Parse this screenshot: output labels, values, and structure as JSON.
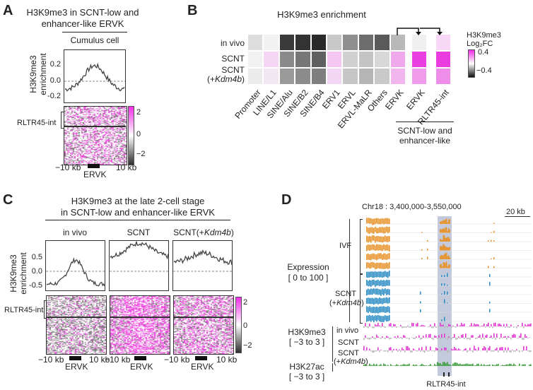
{
  "panelA": {
    "label": "A",
    "title_line1": "H3K9me3 in SCNT-low and",
    "title_line2": "enhancer-like ERVK",
    "subtitle": "Cumulus cell",
    "ylabel_line1": "H3K9me3",
    "ylabel_line2": "enrichment",
    "yticks": [
      "0.2",
      "0.0",
      "-0.2"
    ],
    "row_label": "RLTR45-int",
    "colorbar_ticks": [
      "2",
      "0",
      "−2"
    ],
    "x_left": "−10 kb",
    "x_right": "10 kb",
    "x_feature": "ERVK"
  },
  "panelB": {
    "label": "B",
    "title": "H3K9me3 enrichment",
    "rows": [
      "in vivo",
      "SCNT",
      "SCNT",
      "(+Kdm4b)"
    ],
    "row3_prefix": "(+",
    "row3_gene": "Kdm4b",
    "row3_suffix": ")",
    "columns": [
      "Promoter",
      "LINE/L1",
      "SINE/Alu",
      "SINE/B2",
      "SINE/B4",
      "ERV1",
      "ERVL",
      "ERVL-MaLR",
      "Others",
      "ERVK"
    ],
    "extra_columns": [
      "ERVK",
      "RLTR45-int"
    ],
    "group_label_line1": "SCNT-low and",
    "group_label_line2": "enhancer-like",
    "legend_title_line1": "H3K9me3",
    "legend_title_line2": "Log₂FC",
    "legend_ticks": [
      "0.4",
      "−0.4"
    ],
    "cells": [
      [
        "#dedede",
        "#f2f2f2",
        "#3a3a3a",
        "#333333",
        "#2a2a2a",
        "#c8c8c8",
        "#8f8f8f",
        "#6d6d6d",
        "#5a5a5a",
        "#b9b9b9"
      ],
      [
        "#f1f1f1",
        "#f5d6f3",
        "#8a8a8a",
        "#777777",
        "#5f5f5f",
        "#f4c6f1",
        "#d0d0d0",
        "#c4c4c4",
        "#d8d8d8",
        "#f0aaec"
      ],
      [
        "#ececec",
        "#f2e8f2",
        "#9a9a9a",
        "#8c8c8c",
        "#7f7f7f",
        "#f3d6f1",
        "#c6c6c6",
        "#b5b5b5",
        "#c9c9c9",
        "#f1b6ee"
      ]
    ],
    "extra_cells": [
      [
        "#f0f0f0",
        "#f7d8f5"
      ],
      [
        "#ea3fe0",
        "#e93de0"
      ],
      [
        "#ef9be9",
        "#ee8ee8"
      ]
    ]
  },
  "panelC": {
    "label": "C",
    "title_line1": "H3K9me3 at the late 2-cell stage",
    "title_line2": "in SCNT-low and enhancer-like ERVK",
    "col1": "in vivo",
    "col2": "SCNT",
    "col3_prefix": "SCNT(+",
    "col3_gene": "Kdm4b",
    "col3_suffix": ")",
    "ylabel_line1": "H3K9me3",
    "ylabel_line2": "enrichment",
    "yticks": [
      "0.5",
      "0.0",
      "-0.5"
    ],
    "row_label": "RLTR45-int",
    "colorbar_ticks": [
      "2",
      "0",
      "−2"
    ],
    "x_left": "−10 kb",
    "x_right": "10 kb",
    "x_feature": "ERVK"
  },
  "panelD": {
    "label": "D",
    "locus": "Chr18 : 3,400,000-3,550,000",
    "scale": "20 kb",
    "expression_line1": "Expression",
    "expression_line2": "[ 0 to 100 ]",
    "ivf": "IVF",
    "scnt_line1": "SCNT",
    "scnt_prefix": "(+",
    "scnt_gene": "Kdm4b",
    "scnt_suffix": ")",
    "h3k9_line1": "H3K9me3",
    "h3k9_line2": "[ −3 to 3 ]",
    "h3k27_line1": "H3K27ac",
    "h3k27_line2": "[ −3 to 3 ]",
    "track_invivo": "in vivo",
    "track_scnt": "SCNT",
    "track_scnt_kdm": "SCNT",
    "bottom_label": "RLTR45-int",
    "colors": {
      "ivf": "#e8922a",
      "scnt": "#2b8cc4",
      "h3k9_pos": "#e03ad0",
      "h3k9_neg": "#b8b8b8",
      "h3k27": "#3a9a3a",
      "highlight": "#b7c1d6"
    }
  }
}
